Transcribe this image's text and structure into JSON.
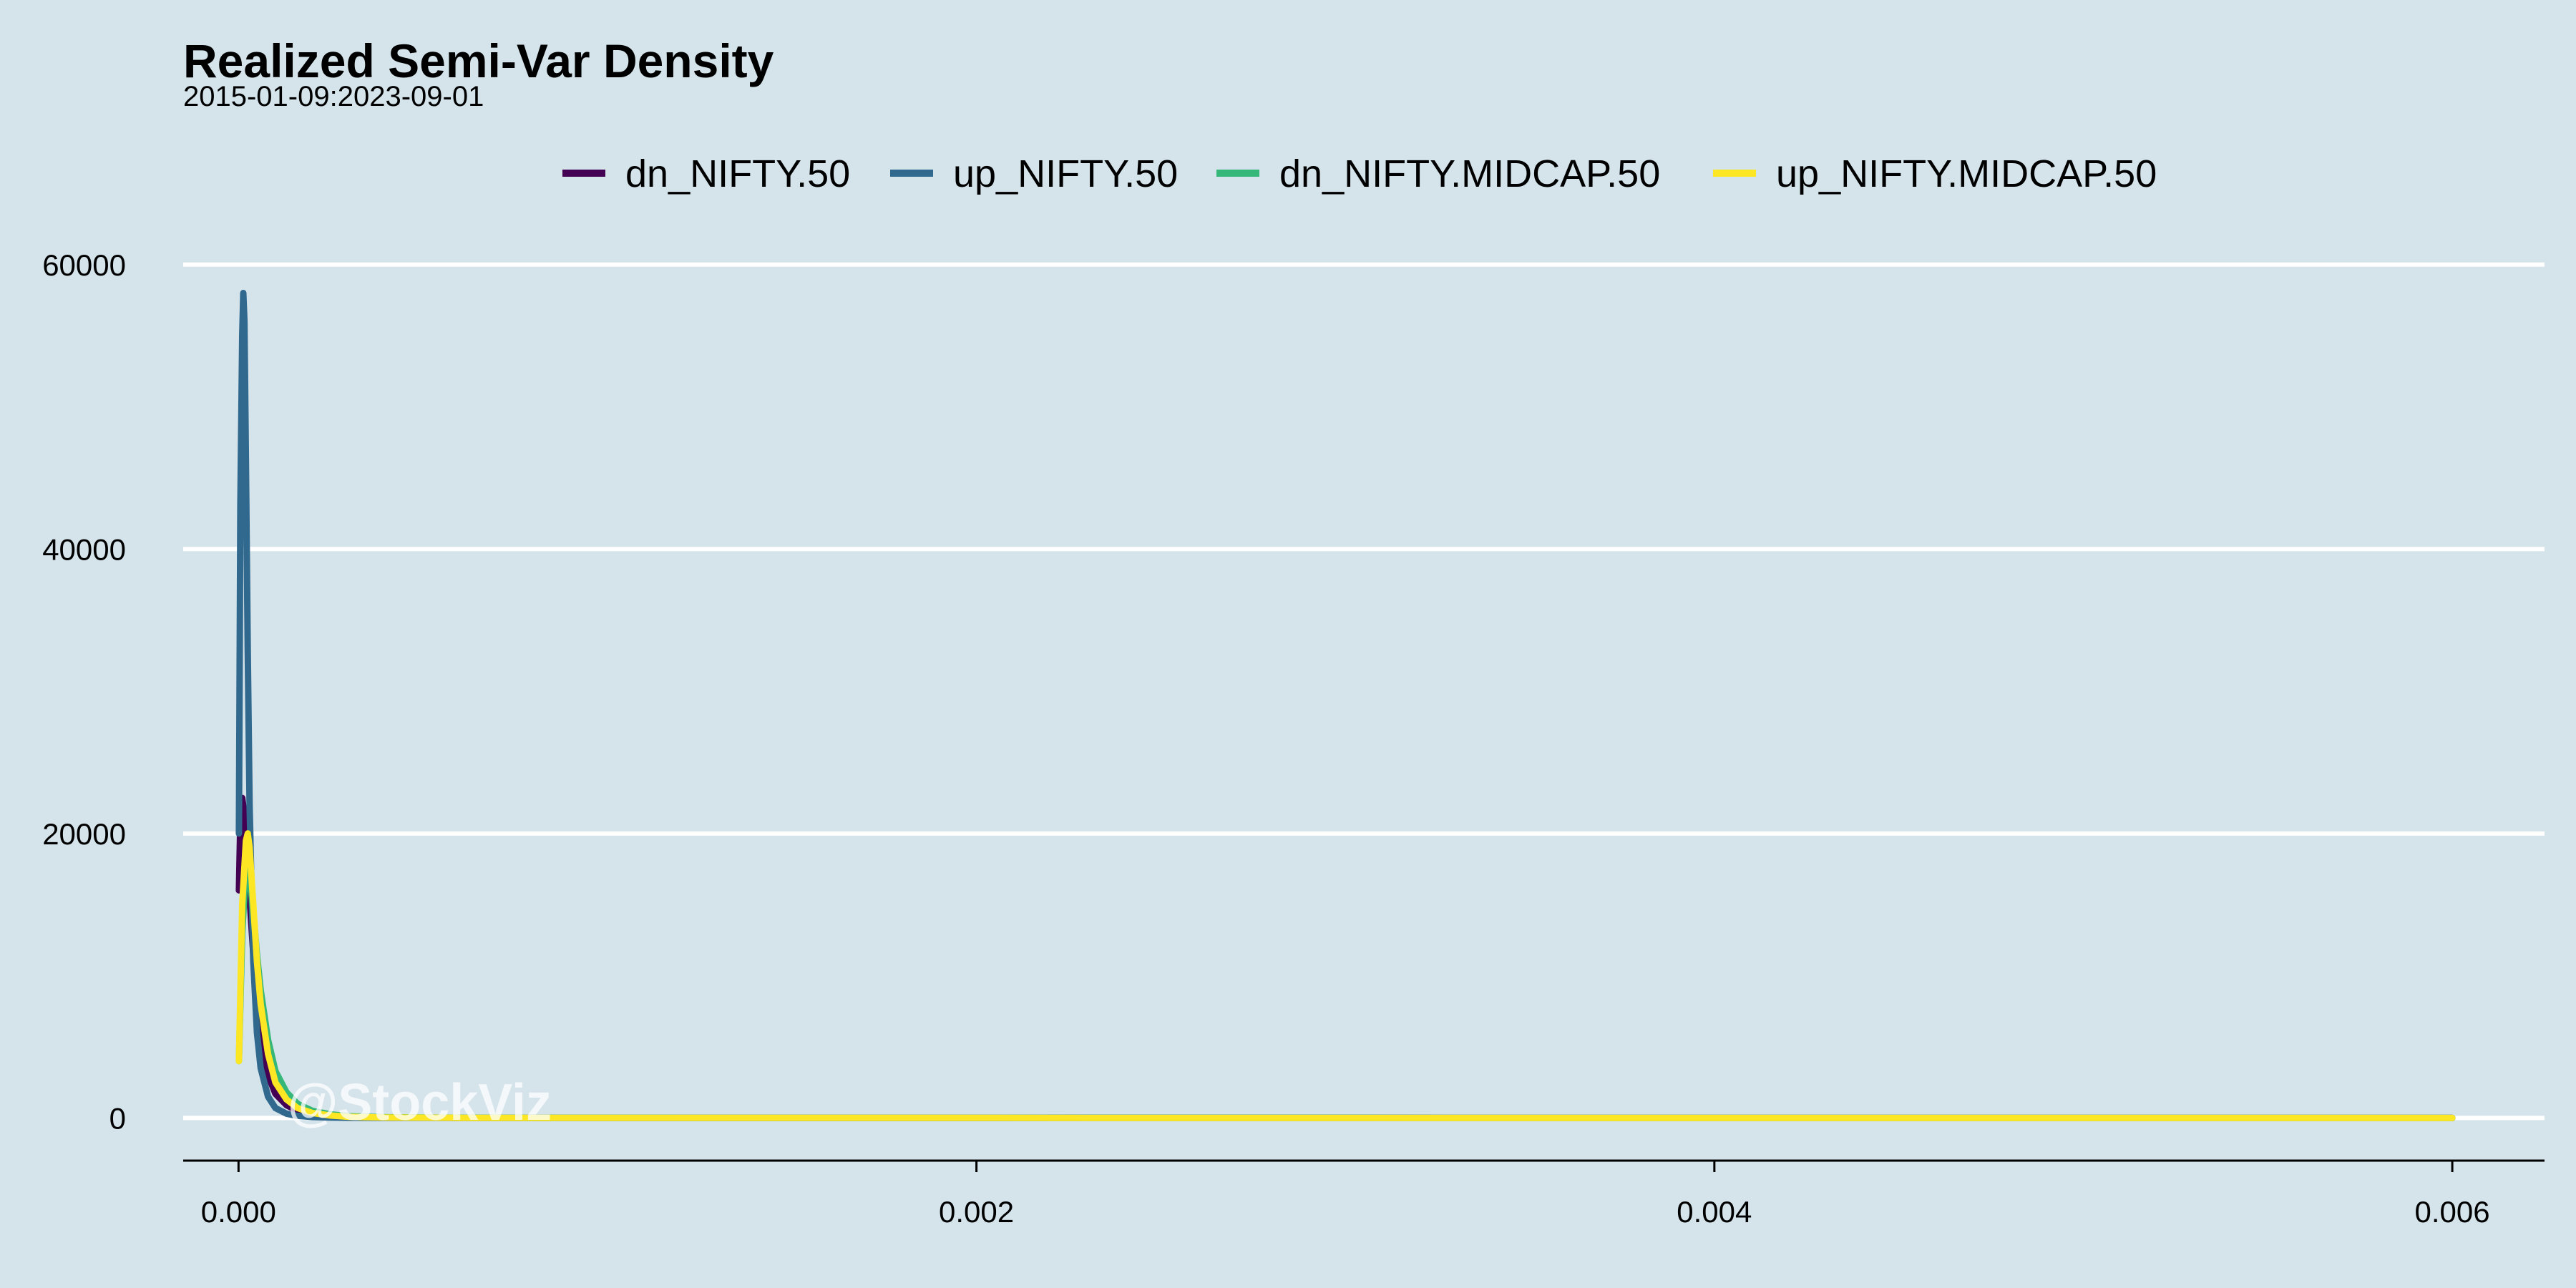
{
  "chart_data": {
    "type": "line",
    "title": "Realized Semi-Var Density",
    "subtitle": "2015-01-09:2023-09-01",
    "xlabel": "",
    "ylabel": "",
    "xlim": [
      -0.00015,
      0.00625
    ],
    "ylim": [
      -3000,
      62000
    ],
    "x_ticks": [
      0.0,
      0.002,
      0.004,
      0.006
    ],
    "x_tick_labels": [
      "0.000",
      "0.002",
      "0.004",
      "0.006"
    ],
    "y_ticks": [
      0,
      20000,
      40000,
      60000
    ],
    "y_tick_labels": [
      "0",
      "20000",
      "40000",
      "60000"
    ],
    "grid": "horizontal",
    "legend_position": "top",
    "series": [
      {
        "name": "dn_NIFTY.50",
        "color": "#440154",
        "x": [
          1e-06,
          5e-06,
          1e-05,
          1.5e-05,
          2e-05,
          3e-05,
          4e-05,
          5e-05,
          6e-05,
          8e-05,
          0.0001,
          0.00013,
          0.00016,
          0.0002,
          0.00025,
          0.0003,
          0.0004,
          0.0006,
          0.001,
          0.002,
          0.003,
          0.004,
          0.005,
          0.006
        ],
        "y": [
          16000,
          21000,
          22500,
          21500,
          19500,
          15500,
          11500,
          8000,
          5500,
          3000,
          1700,
          900,
          500,
          250,
          120,
          60,
          25,
          10,
          4,
          2,
          1,
          0.5,
          0.2,
          0
        ]
      },
      {
        "name": "up_NIFTY.50",
        "color": "#31688e",
        "x": [
          1e-06,
          5e-06,
          1e-05,
          1.3e-05,
          1.6e-05,
          2e-05,
          2.5e-05,
          3e-05,
          4e-05,
          5e-05,
          6e-05,
          8e-05,
          0.0001,
          0.00013,
          0.00016,
          0.0002,
          0.00025,
          0.0003,
          0.0004,
          0.0006,
          0.001,
          0.002,
          0.003,
          0.004,
          0.005,
          0.006
        ],
        "y": [
          20000,
          43000,
          55000,
          58000,
          56000,
          46000,
          33000,
          22000,
          11000,
          6000,
          3500,
          1500,
          700,
          300,
          150,
          70,
          35,
          15,
          5,
          2,
          1,
          0.5,
          0.2,
          0.1,
          0,
          0
        ]
      },
      {
        "name": "dn_NIFTY.MIDCAP.50",
        "color": "#35b779",
        "x": [
          1e-06,
          1e-05,
          2e-05,
          3e-05,
          4e-05,
          5e-05,
          6e-05,
          8e-05,
          0.0001,
          0.00013,
          0.00016,
          0.0002,
          0.00025,
          0.0003,
          0.0004,
          0.0006,
          0.001,
          0.002,
          0.003,
          0.004,
          0.005,
          0.006
        ],
        "y": [
          4000,
          13000,
          17500,
          17000,
          14500,
          11500,
          9000,
          5500,
          3300,
          1800,
          1000,
          500,
          250,
          120,
          50,
          15,
          5,
          2,
          1,
          0.5,
          0.2,
          0
        ]
      },
      {
        "name": "up_NIFTY.MIDCAP.50",
        "color": "#fde725",
        "x": [
          1e-06,
          1e-05,
          2e-05,
          2.5e-05,
          3e-05,
          4e-05,
          5e-05,
          6e-05,
          8e-05,
          0.0001,
          0.00013,
          0.00016,
          0.0002,
          0.00025,
          0.0003,
          0.0004,
          0.0006,
          0.001,
          0.002,
          0.003,
          0.004,
          0.005,
          0.006
        ],
        "y": [
          4000,
          15000,
          19500,
          20000,
          19000,
          15000,
          11000,
          8000,
          4500,
          2500,
          1300,
          700,
          350,
          170,
          80,
          30,
          10,
          3,
          1,
          0.5,
          0.2,
          0.1,
          0
        ]
      }
    ]
  },
  "watermark": "@StockViz"
}
